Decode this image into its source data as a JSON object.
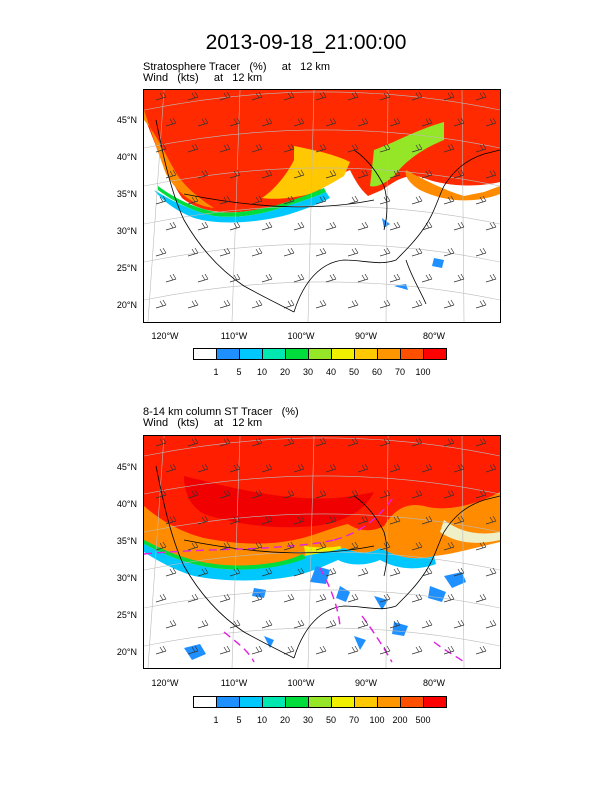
{
  "title": "2013-09-18_21:00:00",
  "panels": [
    {
      "line1": "Stratosphere Tracer   (%)     at   12 km",
      "line2": "Wind   (kts)     at   12 km",
      "colorbar_labels": [
        "1",
        "5",
        "10",
        "20",
        "30",
        "40",
        "50",
        "60",
        "70",
        "100"
      ]
    },
    {
      "line1": "8-14 km column ST Tracer   (%)",
      "line2": "Wind   (kts)     at   12 km",
      "colorbar_labels": [
        "1",
        "5",
        "10",
        "20",
        "30",
        "50",
        "70",
        "100",
        "200",
        "500"
      ]
    }
  ],
  "lat_labels": [
    "45°N",
    "40°N",
    "35°N",
    "30°N",
    "25°N",
    "20°N"
  ],
  "lon_labels": [
    "120°W",
    "110°W",
    "100°W",
    "90°W",
    "80°W"
  ],
  "colors": [
    "#ffffff",
    "#1e90ff",
    "#00c8ff",
    "#00e8b0",
    "#00dc3c",
    "#96e628",
    "#f0f000",
    "#ffc800",
    "#ff9600",
    "#ff5000",
    "#ff0000"
  ]
}
